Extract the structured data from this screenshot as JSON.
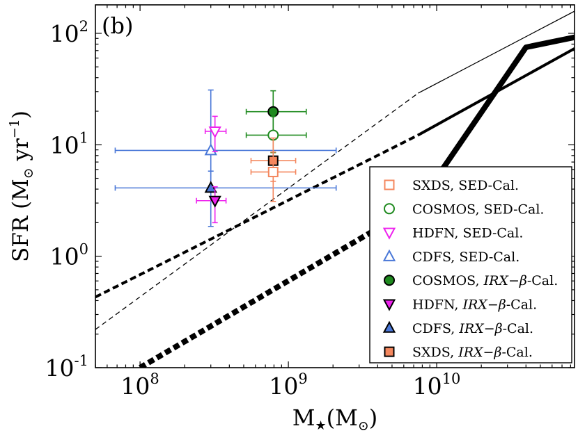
{
  "chart_data": {
    "type": "scatter",
    "panel_label": "(b)",
    "xlabel": {
      "main": "M",
      "sub": "★",
      "rest": "(M",
      "sub2": "⊙",
      "close": ")"
    },
    "ylabel": {
      "main": "SFR (M",
      "sub": "⊙",
      "mid": " yr",
      "sup": "−1",
      "close": ")"
    },
    "x_scale": "log",
    "y_scale": "log",
    "xlim": [
      50000000.0,
      85000000000.0
    ],
    "ylim": [
      0.1,
      180
    ],
    "x_ticks": [
      {
        "value": 100000000.0,
        "base": "10",
        "exp": "8"
      },
      {
        "value": 1000000000.0,
        "base": "10",
        "exp": "9"
      },
      {
        "value": 10000000000.0,
        "base": "10",
        "exp": "10"
      }
    ],
    "y_ticks": [
      {
        "value": 0.1,
        "base": "10",
        "exp": "-1"
      },
      {
        "value": 1,
        "base": "10",
        "exp": "0"
      },
      {
        "value": 10,
        "base": "10",
        "exp": "1"
      },
      {
        "value": 100,
        "base": "10",
        "exp": "2"
      }
    ],
    "colors": {
      "sxds": "#f4875e",
      "cosmos": "#1f8a1f",
      "hdfn": "#ee22ee",
      "cdfs": "#4a78d8"
    },
    "lines": [
      {
        "name": "heavy-dashed-relation",
        "style": "heavy-dashed",
        "x": [
          100000000.0,
          7500000000.0
        ],
        "y": [
          0.1,
          2.9
        ]
      },
      {
        "name": "heavy-solid-relation",
        "style": "heavy-solid",
        "x": [
          7500000000.0,
          40000000000.0,
          85000000000.0
        ],
        "y": [
          2.9,
          75,
          92
        ]
      },
      {
        "name": "medium-dashed-relation",
        "style": "medium-dashed",
        "x": [
          50000000.0,
          7500000000.0
        ],
        "y": [
          0.43,
          12.2
        ]
      },
      {
        "name": "medium-solid-relation",
        "style": "medium-solid",
        "x": [
          7500000000.0,
          85000000000.0
        ],
        "y": [
          12.2,
          73
        ]
      },
      {
        "name": "thin-dashed-relation",
        "style": "thin-dashed",
        "x": [
          50000000.0,
          7500000000.0
        ],
        "y": [
          0.22,
          29
        ]
      },
      {
        "name": "thin-solid-relation",
        "style": "thin-solid",
        "x": [
          7500000000.0,
          85000000000.0
        ],
        "y": [
          29,
          158
        ]
      }
    ],
    "points": [
      {
        "name": "cdfs-sed-cal",
        "marker": "triangle-up",
        "filled": false,
        "color_key": "cdfs",
        "x": 300000000.0,
        "y": 8.9,
        "xerr": [
          68000000.0,
          2100000000.0
        ],
        "yerr": [
          3.8,
          31
        ]
      },
      {
        "name": "cdfs-irx-cal",
        "marker": "triangle-up",
        "filled": true,
        "color_key": "cdfs",
        "x": 300000000.0,
        "y": 4.1,
        "xerr": [
          68000000.0,
          2100000000.0
        ],
        "yerr": [
          1.85,
          5.8
        ]
      },
      {
        "name": "hdfn-sed-cal",
        "marker": "triangle-down",
        "filled": false,
        "color_key": "hdfn",
        "x": 320000000.0,
        "y": 13.2,
        "xerr": [
          275000000.0,
          380000000.0
        ],
        "yerr": [
          8.7,
          18
        ]
      },
      {
        "name": "hdfn-irx-cal",
        "marker": "triangle-down",
        "filled": true,
        "color_key": "hdfn",
        "x": 320000000.0,
        "y": 3.15,
        "xerr": [
          240000000.0,
          380000000.0
        ],
        "yerr": [
          2.0,
          4.2
        ]
      },
      {
        "name": "cosmos-irx-cal",
        "marker": "circle",
        "filled": true,
        "color_key": "cosmos",
        "x": 790000000.0,
        "y": 19.8,
        "xerr": [
          520000000.0,
          1320000000.0
        ],
        "yerr": [
          12.7,
          30.5
        ]
      },
      {
        "name": "cosmos-sed-cal",
        "marker": "circle",
        "filled": false,
        "color_key": "cosmos",
        "x": 790000000.0,
        "y": 12.2,
        "xerr": [
          520000000.0,
          1320000000.0
        ],
        "yerr": [
          8.5,
          18
        ]
      },
      {
        "name": "sxds-irx-cal",
        "marker": "square",
        "filled": true,
        "color_key": "sxds",
        "x": 790000000.0,
        "y": 7.2,
        "xerr": [
          560000000.0,
          1120000000.0
        ],
        "yerr": [
          4.7,
          11.5
        ]
      },
      {
        "name": "sxds-sed-cal",
        "marker": "square",
        "filled": false,
        "color_key": "sxds",
        "x": 790000000.0,
        "y": 5.7,
        "xerr": [
          560000000.0,
          1120000000.0
        ],
        "yerr": [
          3.1,
          8.6
        ]
      }
    ],
    "legend": {
      "placement": "lower-right",
      "entries": [
        {
          "marker": "square",
          "filled": false,
          "color_key": "sxds",
          "field": "SXDS",
          "method": "SED-Cal.",
          "italic": false
        },
        {
          "marker": "circle",
          "filled": false,
          "color_key": "cosmos",
          "field": "COSMOS",
          "method": "SED-Cal.",
          "italic": false
        },
        {
          "marker": "triangle-down",
          "filled": false,
          "color_key": "hdfn",
          "field": "HDFN",
          "method": "SED-Cal.",
          "italic": false
        },
        {
          "marker": "triangle-up",
          "filled": false,
          "color_key": "cdfs",
          "field": "CDFS",
          "method": "SED-Cal.",
          "italic": false
        },
        {
          "marker": "circle",
          "filled": true,
          "color_key": "cosmos",
          "field": "COSMOS",
          "method_italic": "IRX",
          "method_mid": "−",
          "method_italic2": "β",
          "method_tail": "-Cal.",
          "italic": true
        },
        {
          "marker": "triangle-down",
          "filled": true,
          "color_key": "hdfn",
          "field": "HDFN",
          "method_italic": "IRX",
          "method_mid": "−",
          "method_italic2": "β",
          "method_tail": "-Cal.",
          "italic": true
        },
        {
          "marker": "triangle-up",
          "filled": true,
          "color_key": "cdfs",
          "field": "CDFS",
          "method_italic": "IRX",
          "method_mid": "−",
          "method_italic2": "β",
          "method_tail": "-Cal.",
          "italic": true
        },
        {
          "marker": "square",
          "filled": true,
          "color_key": "sxds",
          "field": "SXDS",
          "method_italic": "IRX",
          "method_mid": "−",
          "method_italic2": "β",
          "method_tail": "-Cal.",
          "italic": true
        }
      ]
    }
  }
}
